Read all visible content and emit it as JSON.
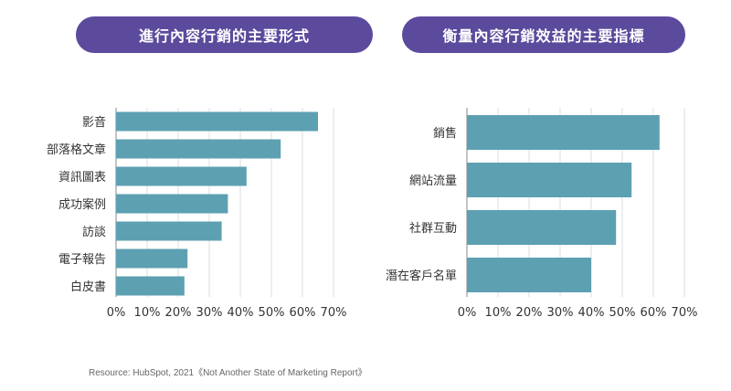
{
  "colors": {
    "bar": "#5da0b2",
    "pill": "#5c4a9c",
    "grid": "#dddddd",
    "axis": "#888888"
  },
  "chart_data": [
    {
      "type": "bar",
      "orientation": "horizontal",
      "title": "進行內容行銷的主要形式",
      "categories": [
        "影音",
        "部落格文章",
        "資訊圖表",
        "成功案例",
        "訪談",
        "電子報告",
        "白皮書"
      ],
      "values": [
        0.65,
        0.53,
        0.42,
        0.36,
        0.34,
        0.23,
        0.22
      ],
      "xlim": [
        0,
        0.7
      ],
      "xticks": [
        "0%",
        "10%",
        "20%",
        "30%",
        "40%",
        "50%",
        "60%",
        "70%"
      ],
      "grid": true
    },
    {
      "type": "bar",
      "orientation": "horizontal",
      "title": "衡量內容行銷效益的主要指標",
      "categories": [
        "銷售",
        "網站流量",
        "社群互動",
        "潛在客戶名單"
      ],
      "values": [
        0.62,
        0.53,
        0.48,
        0.4
      ],
      "xlim": [
        0,
        0.7
      ],
      "xticks": [
        "0%",
        "10%",
        "20%",
        "30%",
        "40%",
        "50%",
        "60%",
        "70%"
      ],
      "grid": true
    }
  ],
  "source": "Resource: HubSpot, 2021《Not Another State of Marketing Report》"
}
